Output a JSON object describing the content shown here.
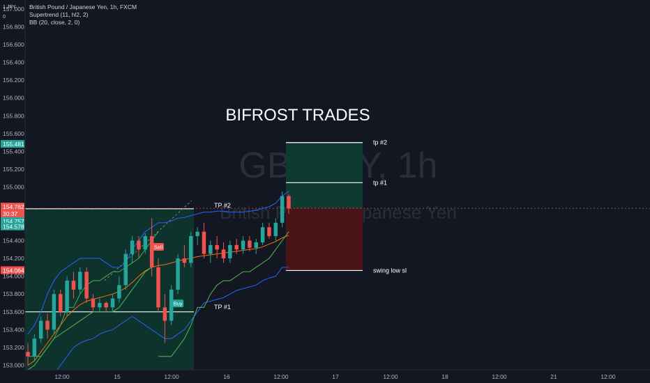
{
  "header": {
    "symbol_title": "British Pound / Japanese Yen, 1h, FXCM",
    "indicator_1": "Supertrend (11, hl2, 2)",
    "indicator_2": "BB (20, close, 2, 0)",
    "corner_label": "1 JPY 0"
  },
  "watermark": {
    "line1": "GBPJPY, 1h",
    "line2": "British Pound / Japanese Yen"
  },
  "overlay_title": "BIFROST TRADES",
  "colors": {
    "background": "#131722",
    "bull": "#26a69a",
    "bear": "#ef5350",
    "bb_band": "#2962ff",
    "bb_basis": "#ff6d00",
    "supertrend": "#4caf50",
    "target_zone": "#0e3a30",
    "stop_zone": "#4a1318"
  },
  "chart_data": {
    "type": "candlestick",
    "ylim": [
      152.95,
      157.1
    ],
    "y_ticks": [
      "157.000",
      "156.800",
      "156.600",
      "156.400",
      "156.200",
      "156.000",
      "155.800",
      "155.600",
      "155.400",
      "155.200",
      "155.000",
      "154.800",
      "154.400",
      "154.200",
      "154.000",
      "153.800",
      "153.600",
      "153.400",
      "153.200",
      "153.000"
    ],
    "x_ticks": [
      "12:00",
      "15",
      "12:00",
      "16",
      "12:00",
      "17",
      "12:00",
      "18",
      "12:00",
      "21",
      "12:00"
    ],
    "price_labels": [
      {
        "value": "155.481",
        "color": "#26a69a"
      },
      {
        "value": "154.762",
        "color": "#ef5350"
      },
      {
        "value": "30:37",
        "color": "#ef5350"
      },
      {
        "value": "154.757",
        "color": "#26a69a"
      },
      {
        "value": "154.578",
        "color": "#26a69a"
      },
      {
        "value": "154.064",
        "color": "#ef5350"
      }
    ],
    "candles": [
      [
        153.15,
        153.25,
        153.0,
        153.1
      ],
      [
        153.1,
        153.35,
        153.05,
        153.3
      ],
      [
        153.3,
        153.55,
        153.25,
        153.5
      ],
      [
        153.5,
        153.58,
        153.3,
        153.4
      ],
      [
        153.4,
        153.85,
        153.35,
        153.8
      ],
      [
        153.8,
        153.85,
        153.55,
        153.6
      ],
      [
        153.6,
        154.0,
        153.55,
        153.95
      ],
      [
        153.95,
        154.05,
        153.75,
        153.85
      ],
      [
        153.85,
        154.1,
        153.8,
        154.05
      ],
      [
        154.05,
        154.1,
        153.7,
        153.75
      ],
      [
        153.75,
        153.8,
        153.6,
        153.65
      ],
      [
        153.65,
        153.75,
        153.6,
        153.7
      ],
      [
        153.7,
        153.72,
        153.6,
        153.65
      ],
      [
        153.65,
        153.8,
        153.6,
        153.75
      ],
      [
        153.75,
        154.0,
        153.7,
        153.9
      ],
      [
        153.9,
        154.3,
        153.85,
        154.25
      ],
      [
        154.25,
        154.45,
        154.15,
        154.4
      ],
      [
        154.4,
        154.45,
        154.2,
        154.3
      ],
      [
        154.3,
        154.48,
        154.25,
        154.45
      ],
      [
        154.45,
        154.65,
        154.0,
        154.1
      ],
      [
        154.1,
        154.2,
        153.6,
        153.65
      ],
      [
        153.65,
        153.8,
        153.25,
        153.5
      ],
      [
        153.5,
        153.9,
        153.45,
        153.85
      ],
      [
        153.85,
        154.25,
        153.8,
        154.2
      ],
      [
        154.2,
        154.35,
        154.1,
        154.15
      ],
      [
        154.15,
        154.5,
        154.1,
        154.45
      ],
      [
        154.45,
        154.55,
        154.35,
        154.5
      ],
      [
        154.5,
        154.6,
        154.2,
        154.25
      ],
      [
        154.25,
        154.4,
        154.15,
        154.35
      ],
      [
        154.35,
        154.45,
        154.2,
        154.3
      ],
      [
        154.3,
        154.38,
        154.15,
        154.2
      ],
      [
        154.2,
        154.4,
        154.15,
        154.35
      ],
      [
        154.35,
        154.42,
        154.25,
        154.3
      ],
      [
        154.3,
        154.45,
        154.25,
        154.4
      ],
      [
        154.4,
        154.45,
        154.28,
        154.32
      ],
      [
        154.32,
        154.42,
        154.25,
        154.38
      ],
      [
        154.38,
        154.6,
        154.35,
        154.55
      ],
      [
        154.55,
        154.6,
        154.42,
        154.45
      ],
      [
        154.45,
        154.65,
        154.4,
        154.6
      ],
      [
        154.6,
        154.95,
        154.55,
        154.9
      ],
      [
        154.9,
        154.92,
        154.7,
        154.76
      ]
    ],
    "bollinger": {
      "upper": [
        153.35,
        153.45,
        153.6,
        153.8,
        153.95,
        154.05,
        154.1,
        154.15,
        154.2,
        154.2,
        154.2,
        154.2,
        154.15,
        154.1,
        154.1,
        154.15,
        154.3,
        154.4,
        154.5,
        154.55,
        154.6,
        154.6,
        154.62,
        154.65,
        154.66,
        154.68,
        154.7,
        154.72,
        154.72,
        154.73,
        154.73,
        154.72,
        154.72,
        154.72,
        154.73,
        154.74,
        154.76,
        154.78,
        154.82,
        154.9,
        154.95
      ],
      "basis": [
        153.0,
        153.05,
        153.15,
        153.25,
        153.35,
        153.45,
        153.55,
        153.62,
        153.68,
        153.72,
        153.74,
        153.76,
        153.78,
        153.8,
        153.83,
        153.87,
        153.93,
        154.0,
        154.06,
        154.1,
        154.12,
        154.13,
        154.15,
        154.17,
        154.19,
        154.2,
        154.22,
        154.23,
        154.24,
        154.25,
        154.26,
        154.27,
        154.28,
        154.29,
        154.3,
        154.31,
        154.33,
        154.36,
        154.39,
        154.43,
        154.46
      ],
      "lower": [
        152.7,
        152.75,
        152.8,
        152.85,
        152.9,
        153.0,
        153.1,
        153.2,
        153.25,
        153.28,
        153.3,
        153.35,
        153.38,
        153.4,
        153.45,
        153.5,
        153.55,
        153.5,
        153.45,
        153.4,
        153.35,
        153.3,
        153.3,
        153.35,
        153.4,
        153.5,
        153.6,
        153.7,
        153.72,
        153.74,
        153.76,
        153.8,
        153.84,
        153.86,
        153.88,
        153.9,
        153.95,
        153.98,
        154.0,
        154.1,
        154.1
      ]
    },
    "supertrend": [
      152.95,
      153.0,
      153.1,
      153.2,
      153.3,
      153.35,
      153.4,
      153.45,
      153.5,
      153.55,
      153.6,
      153.6,
      153.6,
      153.6,
      153.65,
      153.75,
      153.85,
      153.95,
      154.05,
      154.1,
      153.1,
      153.1,
      153.1,
      153.2,
      153.3,
      153.45,
      153.65,
      153.65,
      153.8,
      153.9,
      153.95,
      153.95,
      154.0,
      154.05,
      154.05,
      154.1,
      154.15,
      154.2,
      154.3,
      154.4,
      154.5
    ],
    "position_left": {
      "entry": 154.757,
      "target": 153.6,
      "note_top": "TP #2",
      "note_bottom": "TP #1"
    },
    "position_right": {
      "entry": 154.762,
      "tp1": 155.05,
      "tp2": 155.5,
      "stop": 154.064,
      "tp2_label": "tp #2",
      "tp1_label": "tp #1",
      "stop_label": "swing low sl"
    },
    "signals": [
      {
        "label": "Sell",
        "candle": 20,
        "color": "#ef5350"
      },
      {
        "label": "Buy",
        "candle": 23,
        "color": "#26a69a"
      }
    ]
  }
}
